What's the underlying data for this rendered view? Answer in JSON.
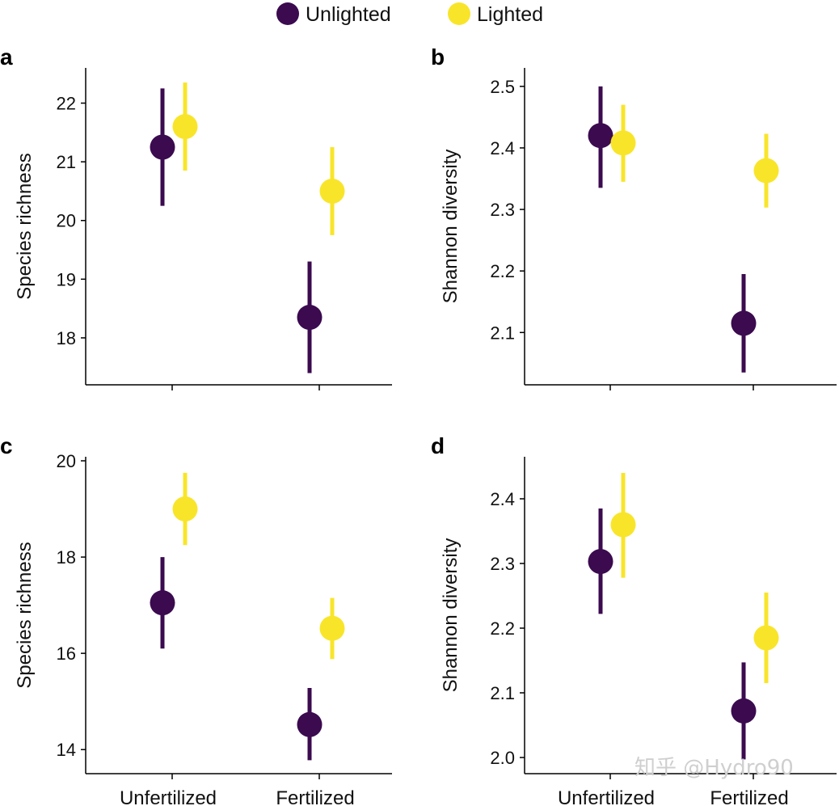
{
  "legend": {
    "placement": "top-center",
    "entries": [
      {
        "label": "Unlighted",
        "color": "#3b0a4f"
      },
      {
        "label": "Lighted",
        "color": "#f8e52a"
      }
    ]
  },
  "watermark": "知乎 @Hydro90",
  "chart_data": [
    {
      "panel": "a",
      "type": "scatter",
      "ylabel": "Species richness",
      "categories": [
        "Unfertilized",
        "Fertilized"
      ],
      "show_x_labels": false,
      "ylim": [
        17.2,
        22.6
      ],
      "yticks": [
        18,
        19,
        20,
        21,
        22
      ],
      "tick_format": 0,
      "series": [
        {
          "name": "Unlighted",
          "color": "#3b0a4f",
          "values": [
            21.25,
            18.35
          ],
          "lower": [
            20.25,
            17.4
          ],
          "upper": [
            22.25,
            19.3
          ]
        },
        {
          "name": "Lighted",
          "color": "#f8e52a",
          "values": [
            21.6,
            20.5
          ],
          "lower": [
            20.85,
            19.75
          ],
          "upper": [
            22.35,
            21.25
          ]
        }
      ]
    },
    {
      "panel": "b",
      "type": "scatter",
      "ylabel": "Shannon diversity",
      "categories": [
        "Unfertilized",
        "Fertilized"
      ],
      "show_x_labels": false,
      "ylim": [
        2.015,
        2.53
      ],
      "yticks": [
        2.1,
        2.2,
        2.3,
        2.4,
        2.5
      ],
      "tick_format": 1,
      "series": [
        {
          "name": "Unlighted",
          "color": "#3b0a4f",
          "values": [
            2.42,
            2.115
          ],
          "lower": [
            2.335,
            2.035
          ],
          "upper": [
            2.5,
            2.195
          ]
        },
        {
          "name": "Lighted",
          "color": "#f8e52a",
          "values": [
            2.408,
            2.363
          ],
          "lower": [
            2.345,
            2.303
          ],
          "upper": [
            2.47,
            2.423
          ]
        }
      ]
    },
    {
      "panel": "c",
      "type": "scatter",
      "ylabel": "Species richness",
      "categories": [
        "Unfertilized",
        "Fertilized"
      ],
      "show_x_labels": true,
      "ylim": [
        13.5,
        20.0
      ],
      "yticks": [
        14,
        16,
        18,
        20
      ],
      "tick_format": 0,
      "series": [
        {
          "name": "Unlighted",
          "color": "#3b0a4f",
          "values": [
            17.05,
            14.52
          ],
          "lower": [
            16.1,
            13.78
          ],
          "upper": [
            18.0,
            15.28
          ]
        },
        {
          "name": "Lighted",
          "color": "#f8e52a",
          "values": [
            19.0,
            16.52
          ],
          "lower": [
            18.25,
            15.88
          ],
          "upper": [
            19.75,
            17.15
          ]
        }
      ]
    },
    {
      "panel": "d",
      "type": "scatter",
      "ylabel": "Shannon diversity",
      "categories": [
        "Unfertilized",
        "Fertilized"
      ],
      "show_x_labels": true,
      "ylim": [
        1.975,
        2.465
      ],
      "yticks": [
        2.0,
        2.1,
        2.2,
        2.3,
        2.4
      ],
      "tick_format": 1,
      "series": [
        {
          "name": "Unlighted",
          "color": "#3b0a4f",
          "values": [
            2.303,
            2.072
          ],
          "lower": [
            2.222,
            1.997
          ],
          "upper": [
            2.385,
            2.147
          ]
        },
        {
          "name": "Lighted",
          "color": "#f8e52a",
          "values": [
            2.36,
            2.185
          ],
          "lower": [
            2.278,
            2.115
          ],
          "upper": [
            2.44,
            2.255
          ]
        }
      ]
    }
  ]
}
